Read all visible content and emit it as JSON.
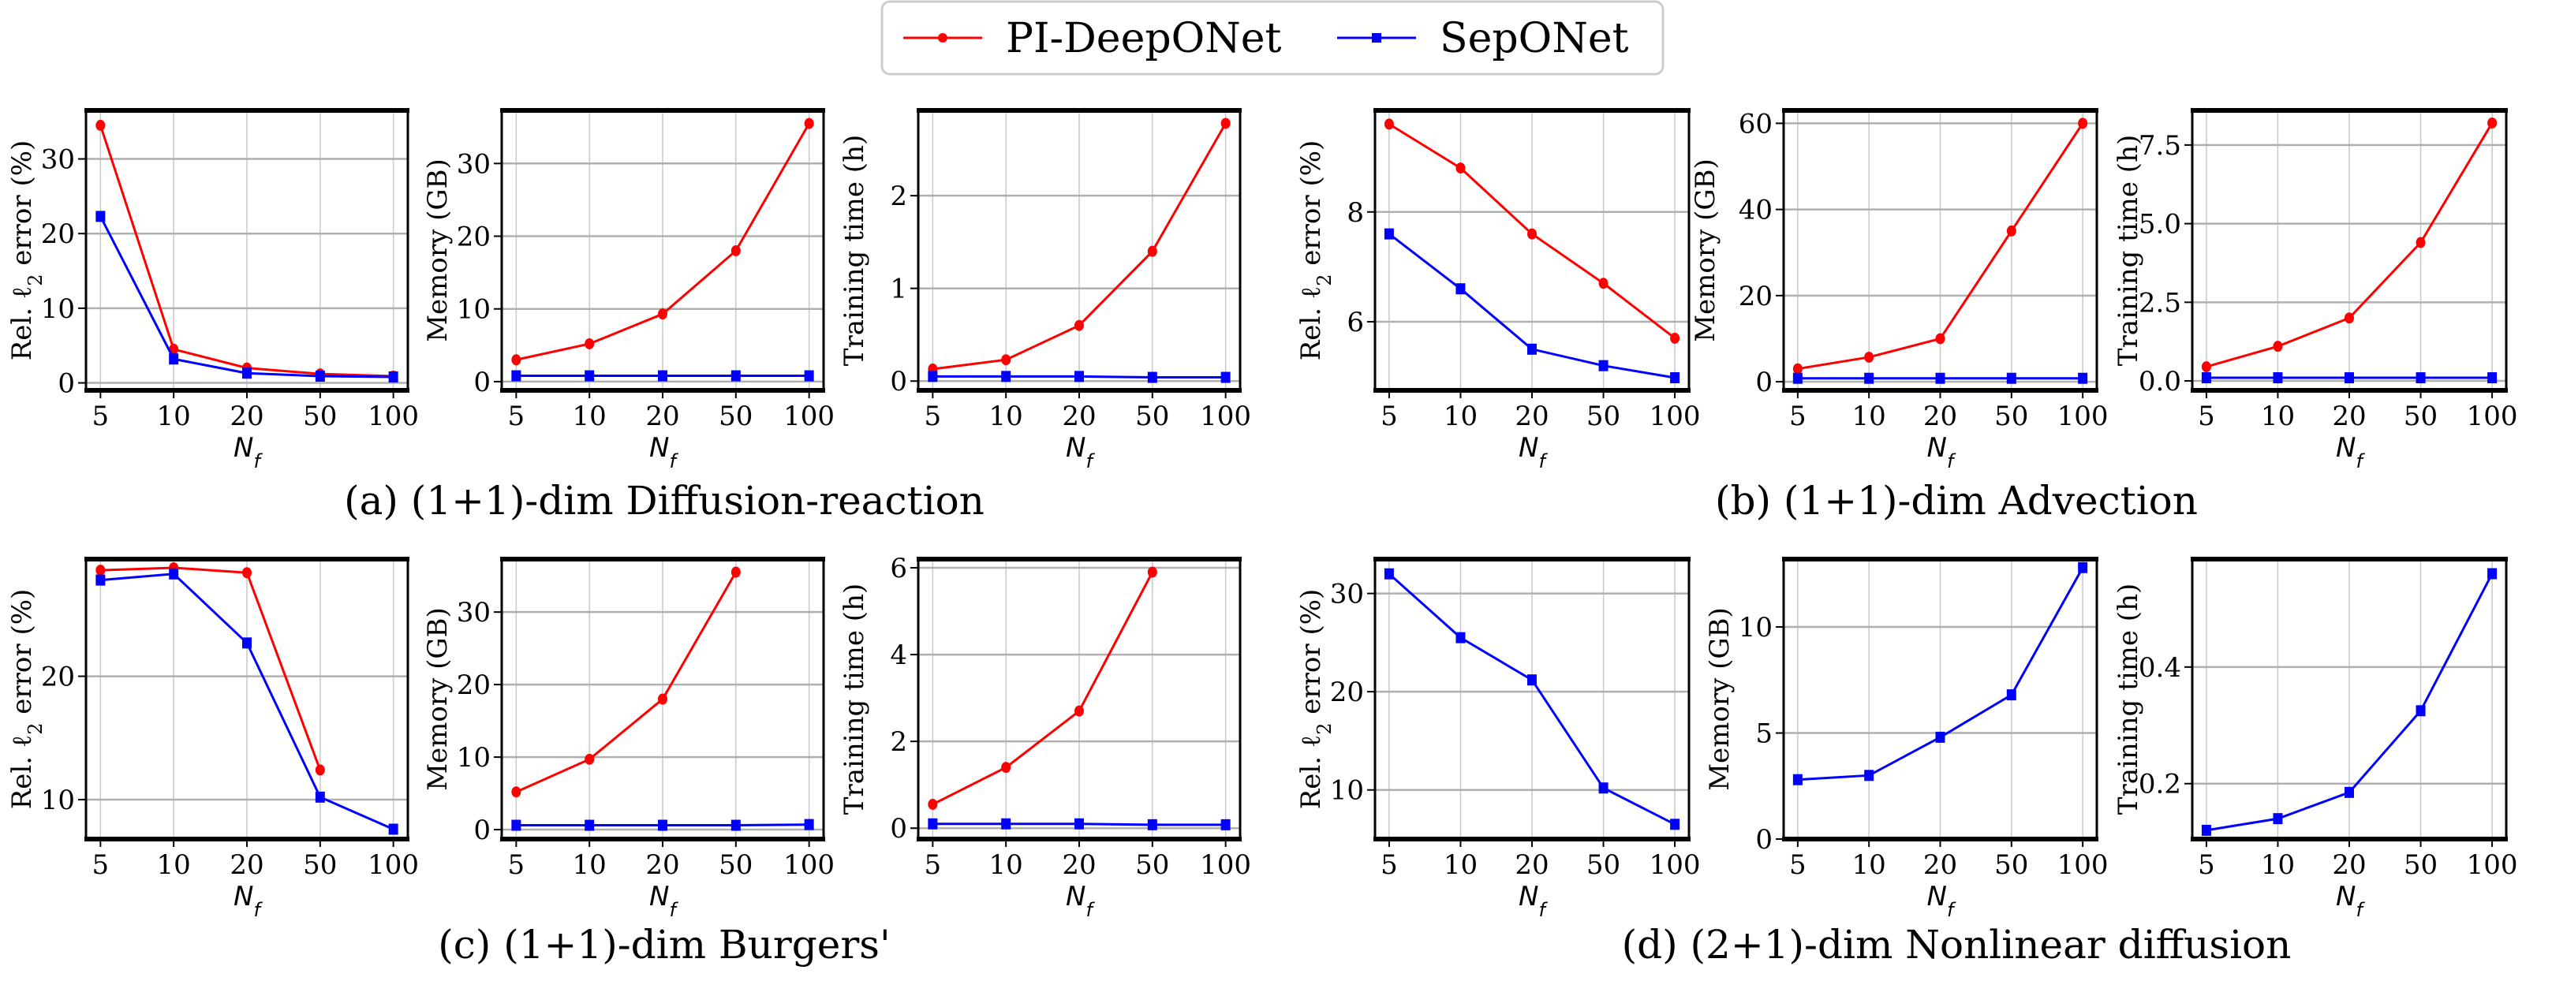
{
  "legend": {
    "placement": "top-center",
    "entries": [
      {
        "label": "PI-DeepONet",
        "color": "#ff0000",
        "marker": "circle"
      },
      {
        "label": "SepONet",
        "color": "#0000ff",
        "marker": "square"
      }
    ]
  },
  "subtitles": [
    "(a) (1+1)-dim Diffusion-reaction",
    "(b) (1+1)-dim Advection",
    "(c) (1+1)-dim Burgers'",
    "(d) (2+1)-dim Nonlinear diffusion"
  ],
  "chart_data": [
    {
      "type": "line",
      "group": 0,
      "ylabel": "Rel. ℓ2 error (%)",
      "xlabel": "N_f",
      "categories": [
        "5",
        "10",
        "20",
        "50",
        "100"
      ],
      "ylim": [
        -1,
        36.5
      ],
      "yticks": [
        0,
        10,
        20,
        30
      ],
      "grid": true,
      "series": [
        {
          "name": "PI-DeepONet",
          "values": [
            34.5,
            4.5,
            2.0,
            1.2,
            0.9
          ]
        },
        {
          "name": "SepONet",
          "values": [
            22.3,
            3.2,
            1.3,
            0.9,
            0.8
          ]
        }
      ]
    },
    {
      "type": "line",
      "group": 0,
      "ylabel": "Memory (GB)",
      "xlabel": "N_f",
      "categories": [
        "5",
        "10",
        "20",
        "50",
        "100"
      ],
      "ylim": [
        -1.2,
        37.3
      ],
      "yticks": [
        0,
        10,
        20,
        30
      ],
      "grid": true,
      "series": [
        {
          "name": "PI-DeepONet",
          "values": [
            3.0,
            5.2,
            9.3,
            18.0,
            35.5
          ]
        },
        {
          "name": "SepONet",
          "values": [
            0.8,
            0.8,
            0.8,
            0.8,
            0.8
          ]
        }
      ]
    },
    {
      "type": "line",
      "group": 0,
      "ylabel": "Training time (h)",
      "xlabel": "N_f",
      "categories": [
        "5",
        "10",
        "20",
        "50",
        "100"
      ],
      "ylim": [
        -0.1,
        2.92
      ],
      "yticks": [
        0,
        1,
        2
      ],
      "grid": true,
      "series": [
        {
          "name": "PI-DeepONet",
          "values": [
            0.13,
            0.23,
            0.6,
            1.4,
            2.78
          ]
        },
        {
          "name": "SepONet",
          "values": [
            0.05,
            0.05,
            0.05,
            0.04,
            0.04
          ]
        }
      ]
    },
    {
      "type": "line",
      "group": 1,
      "ylabel": "Rel. ℓ2 error (%)",
      "xlabel": "N_f",
      "categories": [
        "5",
        "10",
        "20",
        "50",
        "100"
      ],
      "ylim": [
        4.75,
        9.85
      ],
      "yticks": [
        6,
        8
      ],
      "grid": true,
      "series": [
        {
          "name": "PI-DeepONet",
          "values": [
            9.6,
            8.8,
            7.6,
            6.7,
            5.7
          ]
        },
        {
          "name": "SepONet",
          "values": [
            7.6,
            6.6,
            5.5,
            5.2,
            4.98
          ]
        }
      ]
    },
    {
      "type": "line",
      "group": 1,
      "ylabel": "Memory (GB)",
      "xlabel": "N_f",
      "categories": [
        "5",
        "10",
        "20",
        "50",
        "100"
      ],
      "ylim": [
        -2,
        63
      ],
      "yticks": [
        0,
        20,
        40,
        60
      ],
      "grid": true,
      "series": [
        {
          "name": "PI-DeepONet",
          "values": [
            3.0,
            5.7,
            10.0,
            35.0,
            60.0
          ]
        },
        {
          "name": "SepONet",
          "values": [
            0.8,
            0.8,
            0.8,
            0.8,
            0.8
          ]
        }
      ]
    },
    {
      "type": "line",
      "group": 1,
      "ylabel": "Training time (h)",
      "xlabel": "N_f",
      "categories": [
        "5",
        "10",
        "20",
        "50",
        "100"
      ],
      "ylim": [
        -0.3,
        8.6
      ],
      "yticks": [
        0.0,
        2.5,
        5.0,
        7.5
      ],
      "ytick_labels": [
        "0.0",
        "2.5",
        "5.0",
        "7.5"
      ],
      "grid": true,
      "series": [
        {
          "name": "PI-DeepONet",
          "values": [
            0.45,
            1.1,
            2.0,
            4.4,
            8.2
          ]
        },
        {
          "name": "SepONet",
          "values": [
            0.1,
            0.1,
            0.1,
            0.1,
            0.1
          ]
        }
      ]
    },
    {
      "type": "line",
      "group": 2,
      "ylabel": "Rel. ℓ2 error (%)",
      "xlabel": "N_f",
      "categories": [
        "5",
        "10",
        "20",
        "50",
        "100"
      ],
      "ylim": [
        6.8,
        29.5
      ],
      "yticks": [
        10,
        20
      ],
      "grid": true,
      "series": [
        {
          "name": "PI-DeepONet",
          "values": [
            28.6,
            28.8,
            28.4,
            12.4,
            null
          ]
        },
        {
          "name": "SepONet",
          "values": [
            27.8,
            28.3,
            22.7,
            10.2,
            7.6
          ]
        }
      ]
    },
    {
      "type": "line",
      "group": 2,
      "ylabel": "Memory (GB)",
      "xlabel": "N_f",
      "categories": [
        "5",
        "10",
        "20",
        "50",
        "100"
      ],
      "ylim": [
        -1.3,
        37.3
      ],
      "yticks": [
        0,
        10,
        20,
        30
      ],
      "grid": true,
      "series": [
        {
          "name": "PI-DeepONet",
          "values": [
            5.2,
            9.7,
            18.0,
            35.5,
            null
          ]
        },
        {
          "name": "SepONet",
          "values": [
            0.6,
            0.6,
            0.6,
            0.6,
            0.7
          ]
        }
      ]
    },
    {
      "type": "line",
      "group": 2,
      "ylabel": "Training time (h)",
      "xlabel": "N_f",
      "categories": [
        "5",
        "10",
        "20",
        "50",
        "100"
      ],
      "ylim": [
        -0.25,
        6.2
      ],
      "yticks": [
        0,
        2,
        4,
        6
      ],
      "grid": true,
      "series": [
        {
          "name": "PI-DeepONet",
          "values": [
            0.55,
            1.4,
            2.7,
            5.9,
            null
          ]
        },
        {
          "name": "SepONet",
          "values": [
            0.1,
            0.1,
            0.1,
            0.08,
            0.08
          ]
        }
      ]
    },
    {
      "type": "line",
      "group": 3,
      "ylabel": "Rel. ℓ2 error (%)",
      "xlabel": "N_f",
      "categories": [
        "5",
        "10",
        "20",
        "50",
        "100"
      ],
      "ylim": [
        5,
        33.5
      ],
      "yticks": [
        10,
        20,
        30
      ],
      "grid": true,
      "series": [
        {
          "name": "SepONet",
          "values": [
            32.0,
            25.5,
            21.2,
            10.2,
            6.5
          ]
        }
      ]
    },
    {
      "type": "line",
      "group": 3,
      "ylabel": "Memory (GB)",
      "xlabel": "N_f",
      "categories": [
        "5",
        "10",
        "20",
        "50",
        "100"
      ],
      "ylim": [
        0,
        13.2
      ],
      "yticks": [
        0,
        5,
        10
      ],
      "grid": true,
      "series": [
        {
          "name": "SepONet",
          "values": [
            2.8,
            3.0,
            4.8,
            6.8,
            12.8
          ]
        }
      ]
    },
    {
      "type": "line",
      "group": 3,
      "ylabel": "Training time (h)",
      "xlabel": "N_f",
      "categories": [
        "5",
        "10",
        "20",
        "50",
        "100"
      ],
      "ylim": [
        0.105,
        0.585
      ],
      "yticks": [
        0.2,
        0.4
      ],
      "ytick_labels": [
        "0.2",
        "0.4"
      ],
      "grid": true,
      "series": [
        {
          "name": "SepONet",
          "values": [
            0.12,
            0.14,
            0.185,
            0.325,
            0.56
          ]
        }
      ]
    }
  ]
}
